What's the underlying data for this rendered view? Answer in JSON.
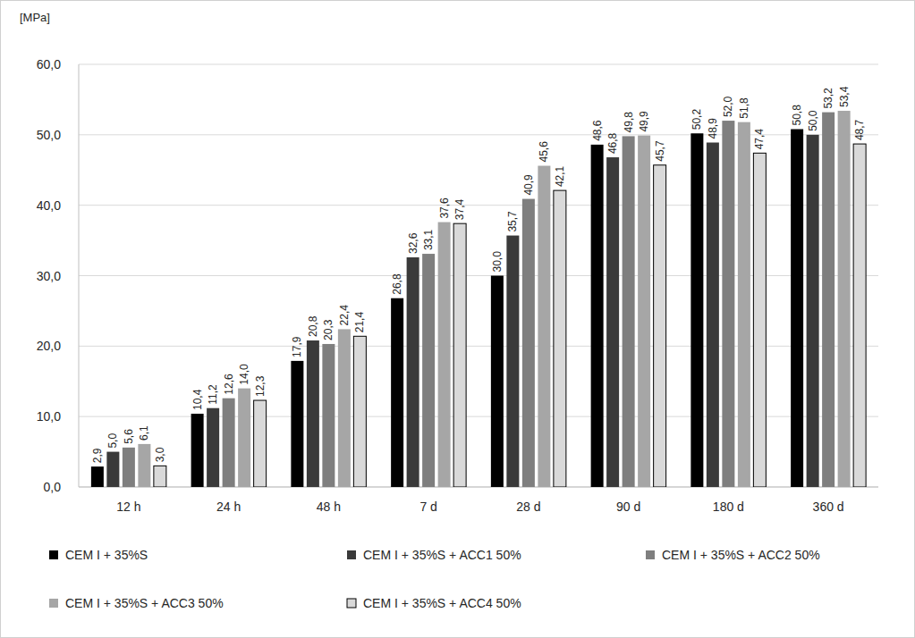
{
  "chart_data": {
    "type": "bar",
    "y_label": "[MPa]",
    "categories": [
      "12 h",
      "24 h",
      "48 h",
      "7 d",
      "28 d",
      "90 d",
      "180 d",
      "360 d"
    ],
    "series": [
      {
        "name": "CEM I + 35%S",
        "color": "#000000",
        "values": [
          2.9,
          10.4,
          17.9,
          26.8,
          30.0,
          48.6,
          50.2,
          50.8
        ],
        "value_labels": [
          "2,9",
          "10,4",
          "17,9",
          "26,8",
          "30,0",
          "48,6",
          "50,2",
          "50,8"
        ]
      },
      {
        "name": "CEM I + 35%S + ACC1 50%",
        "color": "#3a3a3a",
        "values": [
          5.0,
          11.2,
          20.8,
          32.6,
          35.7,
          46.8,
          48.9,
          50.0
        ],
        "value_labels": [
          "5,0",
          "11,2",
          "20,8",
          "32,6",
          "35,7",
          "46,8",
          "48,9",
          "50,0"
        ]
      },
      {
        "name": "CEM I + 35%S + ACC2 50%",
        "color": "#7f7f7f",
        "values": [
          5.6,
          12.6,
          20.3,
          33.1,
          40.9,
          49.8,
          52.0,
          53.2
        ],
        "value_labels": [
          "5,6",
          "12,6",
          "20,3",
          "33,1",
          "40,9",
          "49,8",
          "52,0",
          "53,2"
        ]
      },
      {
        "name": "CEM I + 35%S + ACC3 50%",
        "color": "#a6a6a6",
        "values": [
          6.1,
          14.0,
          22.4,
          37.6,
          45.6,
          49.9,
          51.8,
          53.4
        ],
        "value_labels": [
          "6,1",
          "14,0",
          "22,4",
          "37,6",
          "45,6",
          "49,9",
          "51,8",
          "53,4"
        ]
      },
      {
        "name": "CEM I + 35%S + ACC4 50%",
        "color": "#d9d9d9",
        "values": [
          3.0,
          12.3,
          21.4,
          37.4,
          42.1,
          45.7,
          47.4,
          48.7
        ],
        "value_labels": [
          "3,0",
          "12,3",
          "21,4",
          "37,4",
          "42,1",
          "45,7",
          "47,4",
          "48,7"
        ]
      }
    ],
    "ylim": [
      0,
      60
    ],
    "yticks": [
      {
        "value": 0,
        "label": "0,0"
      },
      {
        "value": 10,
        "label": "10,0"
      },
      {
        "value": 20,
        "label": "20,0"
      },
      {
        "value": 30,
        "label": "30,0"
      },
      {
        "value": 40,
        "label": "40,0"
      },
      {
        "value": 50,
        "label": "50,0"
      },
      {
        "value": 60,
        "label": "60,0"
      }
    ],
    "grid": true,
    "data_labels": true,
    "legend": "bottom"
  }
}
